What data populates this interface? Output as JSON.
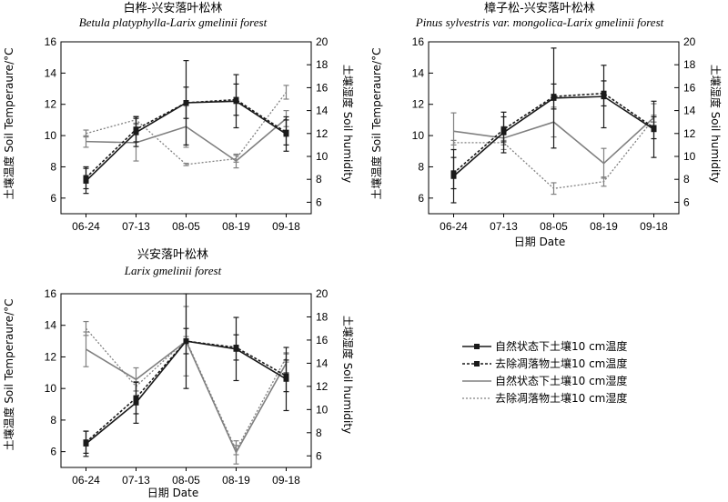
{
  "legend": {
    "entries": [
      {
        "label": "自然状态下土壤10 cm温度",
        "series": "nat_t"
      },
      {
        "label": "去除凋落物土壤10 cm温度",
        "series": "rem_t"
      },
      {
        "label": "自然状态下土壤10 cm湿度",
        "series": "nat_h"
      },
      {
        "label": "去除凋落物土壤10 cm湿度",
        "series": "rem_h"
      }
    ]
  },
  "colors": {
    "temperature": "#1a1a1a",
    "humidity": "#808080"
  },
  "chart_data": [
    {
      "type": "line",
      "title": "白桦-兴安落叶松林",
      "subtitle": "Betula platyphylla-Larix gmelinii forest",
      "categories": [
        "06-24",
        "07-13",
        "08-05",
        "08-19",
        "09-18"
      ],
      "xlabel": "",
      "ylabel": "土壤温度 Soil Temperaure/°C",
      "ylabel2": "土壤湿度 Soil humidity",
      "ylim": [
        5,
        16
      ],
      "yticks": [
        6,
        8,
        10,
        12,
        14,
        16
      ],
      "y2lim": [
        5,
        20
      ],
      "y2ticks": [
        6,
        8,
        10,
        12,
        14,
        16,
        18,
        20
      ],
      "series": [
        {
          "key": "nat_t",
          "axis": "left",
          "values": [
            7.1,
            10.2,
            12.1,
            12.2,
            10.1
          ],
          "err": [
            0.8,
            0.9,
            2.7,
            1.7,
            1.1
          ]
        },
        {
          "key": "rem_t",
          "axis": "left",
          "values": [
            7.3,
            10.4,
            12.1,
            12.3,
            10.2
          ],
          "err": [
            0.7,
            0.8,
            1.0,
            1.0,
            0.8
          ]
        },
        {
          "key": "nat_h",
          "axis": "right",
          "values": [
            11.3,
            11.2,
            12.6,
            9.6,
            13.3
          ],
          "err": [
            0.5,
            1.6,
            1.8,
            0.6,
            0.7
          ]
        },
        {
          "key": "rem_h",
          "axis": "right",
          "values": [
            12.0,
            13.2,
            9.3,
            9.8,
            15.6
          ],
          "err": [
            0.3,
            0.3,
            0.1,
            0.3,
            0.6
          ]
        }
      ]
    },
    {
      "type": "line",
      "title": "樟子松-兴安落叶松林",
      "subtitle": "Pinus sylvestris var. mongolica-Larix gmelinii forest",
      "categories": [
        "06-24",
        "07-13",
        "08-05",
        "08-19",
        "09-18"
      ],
      "xlabel": "日期 Date",
      "ylabel": "土壤温度 Soil Temperaure/°C",
      "ylabel2": "土壤湿度 Soil humidity",
      "ylim": [
        5,
        16
      ],
      "yticks": [
        6,
        8,
        10,
        12,
        14,
        16
      ],
      "y2lim": [
        5,
        20
      ],
      "y2ticks": [
        6,
        8,
        10,
        12,
        14,
        16,
        18,
        20
      ],
      "series": [
        {
          "key": "nat_t",
          "axis": "left",
          "values": [
            7.4,
            10.2,
            12.4,
            12.5,
            10.4
          ],
          "err": [
            1.7,
            1.3,
            3.2,
            2.0,
            1.8
          ]
        },
        {
          "key": "rem_t",
          "axis": "left",
          "values": [
            7.6,
            10.4,
            12.5,
            12.7,
            10.5
          ],
          "err": [
            1.0,
            0.8,
            0.8,
            0.8,
            0.7
          ]
        },
        {
          "key": "nat_h",
          "axis": "right",
          "values": [
            12.2,
            11.6,
            13.0,
            9.4,
            13.4
          ],
          "err": [
            1.6,
            1.0,
            1.3,
            1.3,
            1.2
          ]
        },
        {
          "key": "rem_h",
          "axis": "right",
          "values": [
            11.2,
            11.2,
            7.2,
            7.8,
            13.3
          ],
          "err": [
            0.2,
            0.2,
            0.5,
            0.4,
            0.3
          ]
        }
      ]
    },
    {
      "type": "line",
      "title": "兴安落叶松林",
      "subtitle": "Larix gmelinii forest",
      "categories": [
        "06-24",
        "07-13",
        "08-05",
        "08-19",
        "09-18"
      ],
      "xlabel": "日期 Date",
      "ylabel": "土壤温度 Soil Temperaure/°C",
      "ylabel2": "土壤湿度 Soil humidity",
      "ylim": [
        5,
        16
      ],
      "yticks": [
        6,
        8,
        10,
        12,
        14,
        16
      ],
      "y2lim": [
        5,
        20
      ],
      "y2ticks": [
        6,
        8,
        10,
        12,
        14,
        16,
        18,
        20
      ],
      "series": [
        {
          "key": "nat_t",
          "axis": "left",
          "values": [
            6.5,
            9.1,
            13.0,
            12.5,
            10.6
          ],
          "err": [
            0.8,
            1.3,
            3.0,
            2.0,
            2.0
          ]
        },
        {
          "key": "rem_t",
          "axis": "left",
          "values": [
            6.6,
            9.4,
            13.0,
            12.6,
            10.8
          ],
          "err": [
            0.7,
            1.0,
            0.8,
            0.8,
            1.0
          ]
        },
        {
          "key": "nat_h",
          "axis": "right",
          "values": [
            15.2,
            12.6,
            15.9,
            6.3,
            14.0
          ],
          "err": [
            1.5,
            1.0,
            3.0,
            1.0,
            0.8
          ]
        },
        {
          "key": "rem_h",
          "axis": "right",
          "values": [
            17.0,
            12.0,
            16.0,
            6.5,
            14.5
          ],
          "err": [
            0.6,
            0.4,
            0.3,
            0.4,
            0.4
          ]
        }
      ]
    }
  ]
}
